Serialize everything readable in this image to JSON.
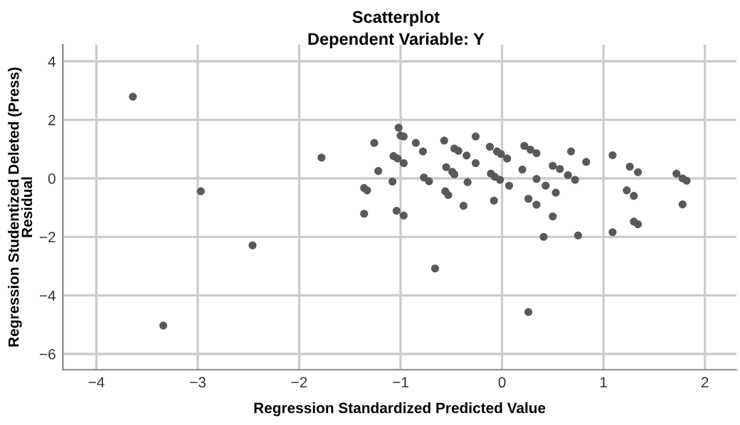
{
  "chart_data": {
    "type": "scatter",
    "title": "Scatterplot",
    "subtitle": "Dependent Variable: Y",
    "xlabel": "Regression Standardized Predicted Value",
    "ylabel": "Regression Studentized Deleted (Press)\nResidual",
    "x": [
      -3.64,
      -3.34,
      -2.97,
      -2.46,
      -1.78,
      -1.26,
      -1.36,
      -1.33,
      -1.36,
      -1.22,
      -1.02,
      -1.0,
      -0.97,
      -1.07,
      -1.03,
      -0.97,
      -1.08,
      -1.04,
      -0.97,
      -0.85,
      -0.78,
      -0.77,
      -0.72,
      -0.66,
      -0.57,
      -0.47,
      -0.43,
      -0.35,
      -0.55,
      -0.49,
      -0.47,
      -0.34,
      -0.56,
      -0.53,
      -0.38,
      -0.26,
      -0.26,
      -0.12,
      -0.05,
      -0.01,
      0.05,
      -0.11,
      -0.07,
      -0.02,
      0.07,
      -0.08,
      0.2,
      0.22,
      0.28,
      0.34,
      0.26,
      0.34,
      0.34,
      0.26,
      0.43,
      0.53,
      0.5,
      0.57,
      0.65,
      0.72,
      0.5,
      0.41,
      0.68,
      0.83,
      0.75,
      1.09,
      1.26,
      1.34,
      1.23,
      1.3,
      1.3,
      1.34,
      1.09,
      1.72,
      1.78,
      1.82,
      1.78
    ],
    "values": [
      2.79,
      -5.03,
      -0.44,
      -2.29,
      0.71,
      1.21,
      -0.33,
      -0.41,
      -1.21,
      0.25,
      1.73,
      1.46,
      1.43,
      0.76,
      0.68,
      0.52,
      -0.11,
      -1.11,
      -1.27,
      1.21,
      0.92,
      0.03,
      -0.1,
      -3.08,
      1.29,
      1.02,
      0.94,
      0.78,
      0.38,
      0.22,
      0.14,
      -0.13,
      -0.44,
      -0.57,
      -0.94,
      1.43,
      0.52,
      1.08,
      0.92,
      0.83,
      0.68,
      0.16,
      0.05,
      -0.05,
      -0.25,
      -0.76,
      0.3,
      1.11,
      0.98,
      0.86,
      -0.7,
      -0.9,
      -0.02,
      -4.57,
      -0.25,
      -0.49,
      0.43,
      0.32,
      0.11,
      -0.05,
      -1.3,
      -2.0,
      0.92,
      0.56,
      -1.95,
      0.79,
      0.4,
      0.21,
      -0.41,
      -0.6,
      -1.48,
      -1.57,
      -1.84,
      0.16,
      0.0,
      -0.08,
      -0.89
    ],
    "color": "#595959",
    "marker": "circle",
    "xlim": [
      -4.33,
      2.31
    ],
    "ylim": [
      -6.54,
      4.57
    ],
    "xticks": [
      -4,
      -3,
      -2,
      -1,
      0,
      1,
      2
    ],
    "yticks": [
      -6,
      -4,
      -2,
      0,
      2,
      4
    ],
    "grid": true
  }
}
